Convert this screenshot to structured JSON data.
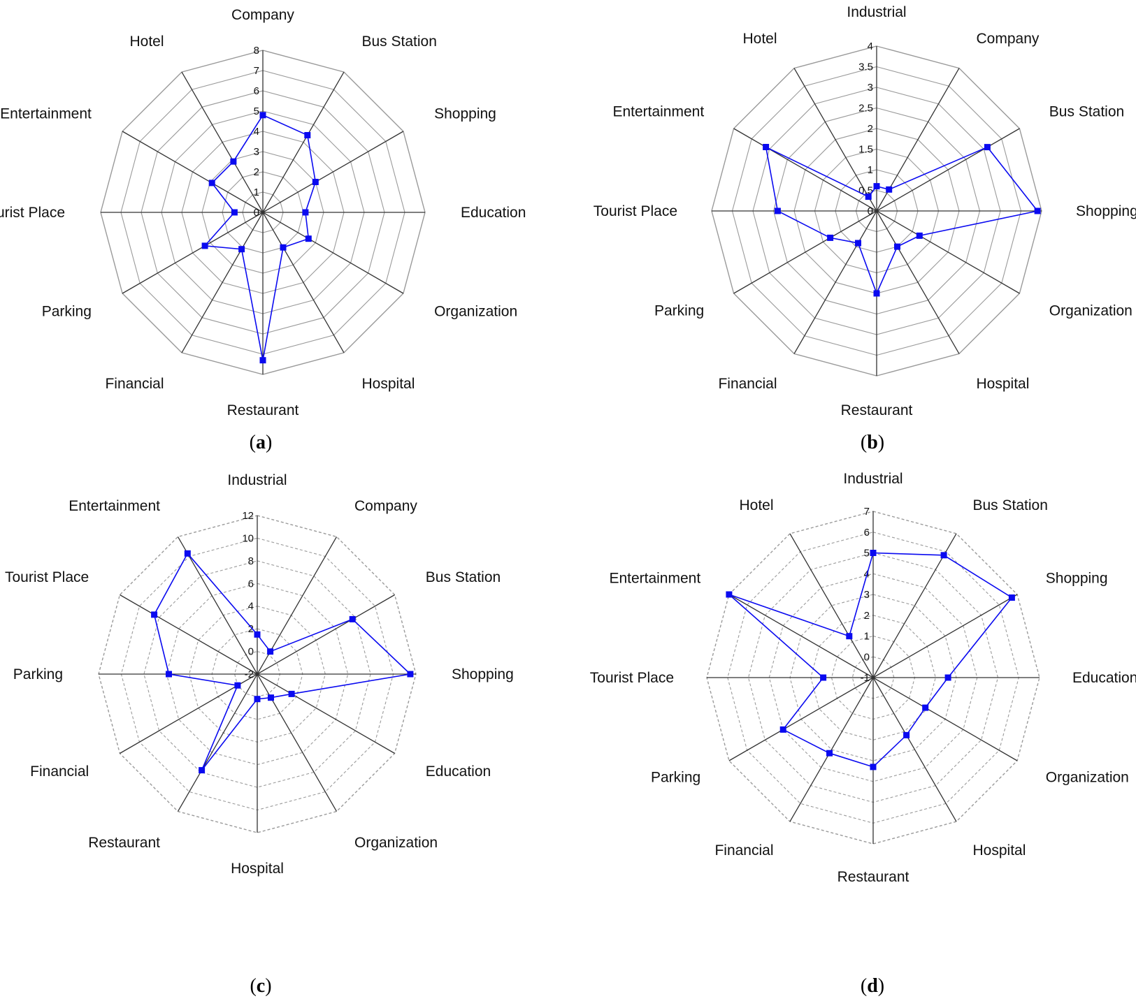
{
  "figure": {
    "colors": {
      "series": "#0a0af0",
      "axis": "#333333",
      "grid": "#9a9a9a"
    }
  },
  "chart_data": [
    {
      "panel": "a",
      "caption": {
        "open": "(",
        "letter": "a",
        "close": ")"
      },
      "type": "radar",
      "categories": [
        "Company",
        "Bus Station",
        "Shopping",
        "Education",
        "Organization",
        "Hospital",
        "Restaurant",
        "Financial",
        "Parking",
        "Tourist Place",
        "Entertainment",
        "Hotel"
      ],
      "values": [
        4.8,
        4.4,
        3.0,
        2.1,
        2.6,
        2.0,
        7.3,
        2.1,
        3.3,
        1.4,
        2.9,
        2.9
      ],
      "rmin": 0,
      "rmax": 8,
      "ticks": [
        "0",
        "1",
        "2",
        "3",
        "4",
        "5",
        "6",
        "7",
        "8"
      ],
      "grid_rings": 8,
      "grid_style": "solid"
    },
    {
      "panel": "b",
      "caption": {
        "open": "(",
        "letter": "b",
        "close": ")"
      },
      "type": "radar",
      "categories": [
        "Industrial",
        "Company",
        "Bus Station",
        "Shopping",
        "Organization",
        "Hospital",
        "Restaurant",
        "Financial",
        "Parking",
        "Tourist Place",
        "Entertainment",
        "Hotel"
      ],
      "values": [
        0.6,
        0.6,
        3.1,
        3.9,
        1.2,
        1.0,
        2.0,
        0.9,
        1.3,
        2.4,
        3.1,
        0.4
      ],
      "rmin": 0,
      "rmax": 4,
      "ticks": [
        "0",
        "0.5",
        "1",
        "1.5",
        "2",
        "2.5",
        "3",
        "3.5",
        "4"
      ],
      "grid_rings": 8,
      "grid_style": "solid"
    },
    {
      "panel": "c",
      "caption": {
        "open": "(",
        "letter": "c",
        "close": ")"
      },
      "type": "radar",
      "categories": [
        "Industrial",
        "Company",
        "Bus Station",
        "Shopping",
        "Education",
        "Organization",
        "Hospital",
        "Restaurant",
        "Financial",
        "Parking",
        "Tourist Place",
        "Entertainment"
      ],
      "values": [
        1.5,
        0.3,
        7.7,
        11.5,
        1.5,
        0.4,
        0.2,
        7.8,
        0.0,
        5.8,
        8.5,
        10.3
      ],
      "rmin": -2,
      "rmax": 12,
      "ticks": [
        "-2",
        "0",
        "2",
        "4",
        "6",
        "8",
        "10",
        "12"
      ],
      "grid_rings": 7,
      "grid_style": "dashed"
    },
    {
      "panel": "d",
      "caption": {
        "open": "(",
        "letter": "d",
        "close": ")"
      },
      "type": "radar",
      "categories": [
        "Industrial",
        "Bus Station",
        "Shopping",
        "Education",
        "Organization",
        "Hospital",
        "Restaurant",
        "Financial",
        "Parking",
        "Tourist Place",
        "Entertainment",
        "Hotel"
      ],
      "values": [
        5.0,
        5.8,
        6.7,
        2.6,
        1.9,
        2.2,
        3.3,
        3.2,
        4.0,
        1.4,
        7.0,
        1.3
      ],
      "rmin": -1,
      "rmax": 7,
      "ticks": [
        "-1",
        "0",
        "1",
        "2",
        "3",
        "4",
        "5",
        "6",
        "7"
      ],
      "grid_rings": 8,
      "grid_style": "dashed"
    }
  ]
}
